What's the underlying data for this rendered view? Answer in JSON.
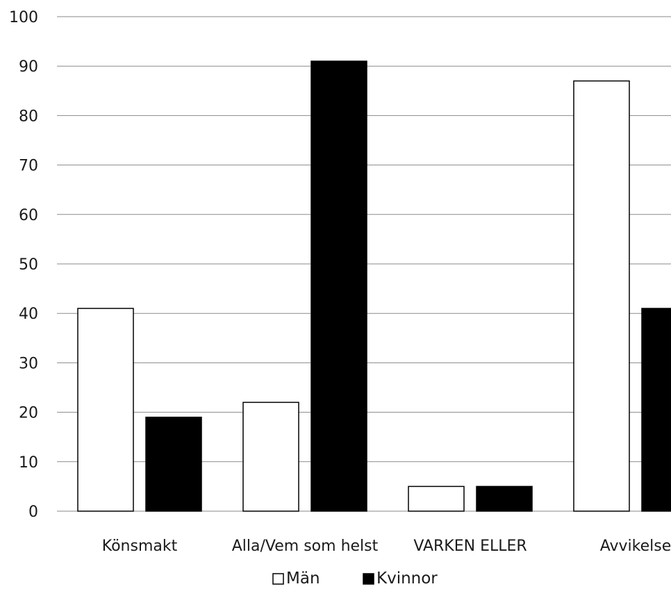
{
  "chart_data": {
    "type": "bar",
    "categories": [
      "Könsmakt",
      "Alla/Vem som helst",
      "VARKEN ELLER",
      "Avvikelse"
    ],
    "series": [
      {
        "name": "Män",
        "values": [
          41,
          22,
          5,
          87
        ],
        "color": "#ffffff"
      },
      {
        "name": "Kvinnor",
        "values": [
          19,
          91,
          5,
          41
        ],
        "color": "#000000"
      }
    ],
    "title": "",
    "xlabel": "",
    "ylabel": "",
    "ylim": [
      0,
      100
    ],
    "yticks": [
      "0",
      "10",
      "20",
      "30",
      "40",
      "50",
      "60",
      "70",
      "80",
      "90",
      "100"
    ],
    "grid": true,
    "legend_position": "bottom"
  }
}
